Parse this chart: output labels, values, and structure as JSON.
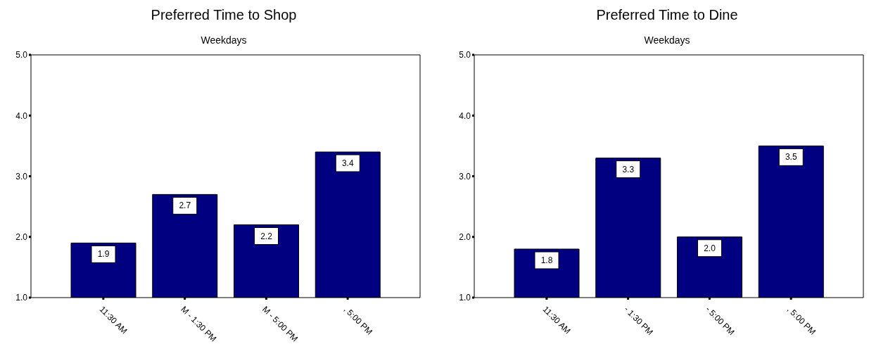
{
  "chart_data": [
    {
      "type": "bar",
      "title": "Preferred Time to Shop",
      "subtitle": "Weekdays",
      "categories": [
        "11:30 AM",
        "M - 1:30 PM",
        "M - 5:00 PM",
        ", 5:00 PM"
      ],
      "values": [
        1.9,
        2.7,
        2.2,
        3.4
      ],
      "value_labels": [
        "1.9",
        "2.7",
        "2.2",
        "3.4"
      ],
      "color": "#000080",
      "ylim": [
        1,
        5
      ],
      "yticks": [
        {
          "value": 1,
          "label": "1.0"
        },
        {
          "value": 2,
          "label": "2.0"
        },
        {
          "value": 3,
          "label": "3.0"
        },
        {
          "value": 4,
          "label": "4.0"
        },
        {
          "value": 5,
          "label": "5.0"
        }
      ]
    },
    {
      "type": "bar",
      "title": "Preferred Time to Dine",
      "subtitle": "Weekdays",
      "categories": [
        "11:30 AM",
        "- 1:30 PM",
        "- 5:00 PM",
        ", 5:00 PM"
      ],
      "values": [
        1.8,
        3.3,
        2.0,
        3.5
      ],
      "value_labels": [
        "1.8",
        "3.3",
        "2.0",
        "3.5"
      ],
      "color": "#000080",
      "ylim": [
        1,
        5
      ],
      "yticks": [
        {
          "value": 1,
          "label": "1.0"
        },
        {
          "value": 2,
          "label": "2.0"
        },
        {
          "value": 3,
          "label": "3.0"
        },
        {
          "value": 4,
          "label": "4.0"
        },
        {
          "value": 5,
          "label": "5.0"
        }
      ]
    }
  ]
}
